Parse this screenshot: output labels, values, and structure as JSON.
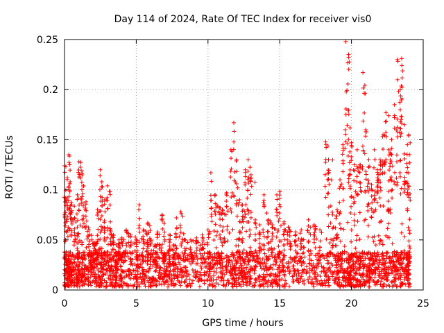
{
  "chart_data": {
    "type": "scatter",
    "title": "Day 114 of 2024, Rate Of TEC Index for receiver vis0",
    "xlabel": "GPS time / hours",
    "ylabel": "ROTI / TECUs",
    "xlim": [
      0,
      25
    ],
    "ylim": [
      0,
      0.25
    ],
    "xticks": [
      0,
      5,
      10,
      15,
      20,
      25
    ],
    "xtick_labels": [
      "0",
      "5",
      "10",
      "15",
      "20",
      "25"
    ],
    "yticks": [
      0,
      0.05,
      0.1,
      0.15,
      0.2,
      0.25
    ],
    "ytick_labels": [
      "0",
      "0.05",
      "0.1",
      "0.15",
      "0.2",
      "0.25"
    ],
    "grid": true,
    "marker": "+",
    "series": [
      {
        "name": "ROTI",
        "color": "#ff0000",
        "note": "dense point cloud; baseline values sampled every ~0.1 h",
        "points": [
          [
            0.0,
            0.124
          ],
          [
            0.1,
            0.09
          ],
          [
            0.2,
            0.112
          ],
          [
            0.3,
            0.135
          ],
          [
            0.4,
            0.108
          ],
          [
            0.5,
            0.085
          ],
          [
            0.7,
            0.072
          ],
          [
            0.9,
            0.095
          ],
          [
            1.0,
            0.128
          ],
          [
            1.2,
            0.119
          ],
          [
            1.3,
            0.104
          ],
          [
            1.5,
            0.088
          ],
          [
            1.7,
            0.06
          ],
          [
            1.9,
            0.05
          ],
          [
            2.1,
            0.047
          ],
          [
            2.3,
            0.08
          ],
          [
            2.5,
            0.12
          ],
          [
            2.6,
            0.108
          ],
          [
            2.8,
            0.09
          ],
          [
            3.0,
            0.104
          ],
          [
            3.2,
            0.068
          ],
          [
            3.4,
            0.055
          ],
          [
            3.6,
            0.045
          ],
          [
            3.8,
            0.05
          ],
          [
            4.0,
            0.052
          ],
          [
            4.3,
            0.06
          ],
          [
            4.6,
            0.055
          ],
          [
            5.0,
            0.05
          ],
          [
            5.2,
            0.085
          ],
          [
            5.5,
            0.06
          ],
          [
            5.8,
            0.067
          ],
          [
            6.0,
            0.05
          ],
          [
            6.3,
            0.045
          ],
          [
            6.5,
            0.058
          ],
          [
            6.8,
            0.075
          ],
          [
            7.0,
            0.05
          ],
          [
            7.3,
            0.055
          ],
          [
            7.6,
            0.045
          ],
          [
            7.8,
            0.072
          ],
          [
            8.1,
            0.078
          ],
          [
            8.4,
            0.05
          ],
          [
            8.8,
            0.05
          ],
          [
            9.2,
            0.052
          ],
          [
            9.6,
            0.055
          ],
          [
            10.0,
            0.06
          ],
          [
            10.2,
            0.117
          ],
          [
            10.5,
            0.095
          ],
          [
            10.8,
            0.082
          ],
          [
            11.0,
            0.08
          ],
          [
            11.3,
            0.097
          ],
          [
            11.6,
            0.14
          ],
          [
            11.8,
            0.167
          ],
          [
            12.0,
            0.13
          ],
          [
            12.2,
            0.09
          ],
          [
            12.4,
            0.085
          ],
          [
            12.6,
            0.12
          ],
          [
            12.8,
            0.13
          ],
          [
            13.0,
            0.115
          ],
          [
            13.3,
            0.07
          ],
          [
            13.6,
            0.065
          ],
          [
            13.9,
            0.095
          ],
          [
            14.2,
            0.07
          ],
          [
            14.5,
            0.065
          ],
          [
            14.8,
            0.095
          ],
          [
            15.0,
            0.098
          ],
          [
            15.3,
            0.068
          ],
          [
            15.7,
            0.06
          ],
          [
            16.1,
            0.058
          ],
          [
            16.5,
            0.06
          ],
          [
            17.0,
            0.07
          ],
          [
            17.4,
            0.065
          ],
          [
            17.8,
            0.06
          ],
          [
            18.2,
            0.148
          ],
          [
            18.4,
            0.13
          ],
          [
            18.7,
            0.075
          ],
          [
            19.0,
            0.08
          ],
          [
            19.2,
            0.11
          ],
          [
            19.4,
            0.145
          ],
          [
            19.6,
            0.248
          ],
          [
            19.8,
            0.235
          ],
          [
            19.9,
            0.162
          ],
          [
            20.0,
            0.147
          ],
          [
            20.2,
            0.125
          ],
          [
            20.4,
            0.14
          ],
          [
            20.6,
            0.125
          ],
          [
            20.8,
            0.217
          ],
          [
            21.0,
            0.16
          ],
          [
            21.2,
            0.13
          ],
          [
            21.4,
            0.105
          ],
          [
            21.6,
            0.14
          ],
          [
            21.8,
            0.12
          ],
          [
            22.0,
            0.13
          ],
          [
            22.2,
            0.155
          ],
          [
            22.4,
            0.177
          ],
          [
            22.6,
            0.14
          ],
          [
            22.8,
            0.15
          ],
          [
            23.0,
            0.185
          ],
          [
            23.2,
            0.23
          ],
          [
            23.4,
            0.2
          ],
          [
            23.5,
            0.231
          ],
          [
            23.7,
            0.165
          ],
          [
            23.9,
            0.145
          ],
          [
            24.0,
            0.155
          ]
        ]
      }
    ]
  }
}
